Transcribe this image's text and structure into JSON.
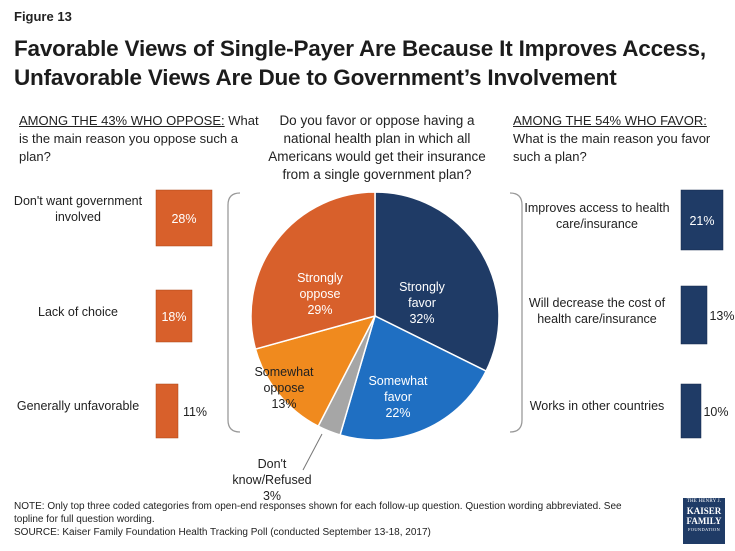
{
  "figure_label": "Figure 13",
  "title": "Favorable Views of Single-Payer Are Because It Improves Access, Unfavorable Views Are Due to Government’s Involvement",
  "question": "Do you favor or oppose having a national health plan in which all Americans would get their insurance from a single government plan?",
  "left_header": {
    "underlined": "AMONG THE 43% WHO OPPOSE:",
    "rest": " What is the main reason you oppose such a plan?"
  },
  "right_header": {
    "underlined": "AMONG THE 54% WHO FAVOR:",
    "rest": " What is the main reason you favor such a plan?"
  },
  "note": "NOTE: Only top three coded categories from open-end responses shown for each follow-up question. Question wording abbreviated. See topline for full question wording.",
  "source": "SOURCE: Kaiser Family Foundation Health Tracking Poll (conducted September 13-18, 2017)",
  "logo": {
    "line1": "THE HENRY J.",
    "line2a": "KAISER",
    "line2b": "FAMILY",
    "line3": "FOUNDATION"
  },
  "colors": {
    "oppose_bar": "#d8602b",
    "favor_bar": "#1f3b66",
    "strongly_favor": "#1f3b66",
    "somewhat_favor": "#1f6fc2",
    "dont_know": "#a6a6a6",
    "somewhat_oppose": "#f08a1e",
    "strongly_oppose": "#d8602b"
  },
  "chart_data": [
    {
      "type": "pie",
      "slices": [
        {
          "name": "Strongly favor",
          "label_lines": [
            "Strongly",
            "favor",
            "32%"
          ],
          "value": 32
        },
        {
          "name": "Somewhat favor",
          "label_lines": [
            "Somewhat",
            "favor",
            "22%"
          ],
          "value": 22
        },
        {
          "name": "Don't know/Refused",
          "label_lines": [
            "Don't",
            "know/Refused",
            "3%"
          ],
          "value": 3
        },
        {
          "name": "Somewhat oppose",
          "label_lines": [
            "Somewhat",
            "oppose",
            "13%"
          ],
          "value": 13
        },
        {
          "name": "Strongly oppose",
          "label_lines": [
            "Strongly",
            "oppose",
            "29%"
          ],
          "value": 29
        }
      ]
    },
    {
      "type": "bar",
      "group": "oppose",
      "categories": [
        "Don't want government involved",
        "Lack of choice",
        "Generally unfavorable"
      ],
      "category_lines": [
        [
          "Don't want government",
          "involved"
        ],
        [
          "Lack of choice"
        ],
        [
          "Generally unfavorable"
        ]
      ],
      "values": [
        28,
        18,
        11
      ],
      "value_labels": [
        "28%",
        "18%",
        "11%"
      ]
    },
    {
      "type": "bar",
      "group": "favor",
      "categories": [
        "Improves access to health care/insurance",
        "Will decrease the cost of health care/insurance",
        "Works in other countries"
      ],
      "category_lines": [
        [
          "Improves access to health",
          "care/insurance"
        ],
        [
          "Will decrease the cost of",
          "health care/insurance"
        ],
        [
          "Works in other countries"
        ]
      ],
      "values": [
        21,
        13,
        10
      ],
      "value_labels": [
        "21%",
        "13%",
        "10%"
      ]
    }
  ]
}
